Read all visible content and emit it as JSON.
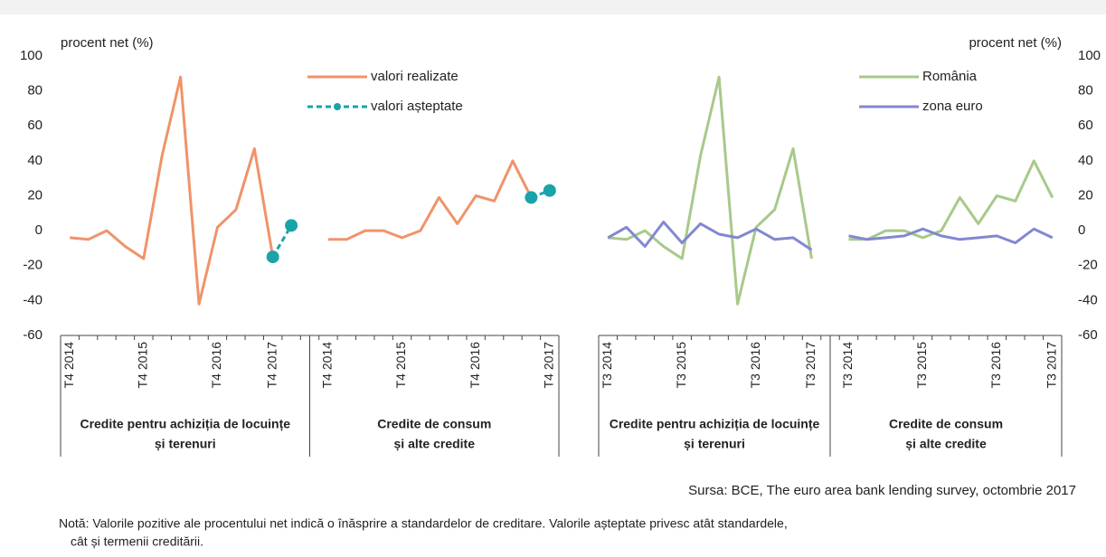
{
  "chart_data": [
    {
      "type": "line",
      "ylabel": "procent net (%)",
      "yaxis_position": "left",
      "ylim": [
        -60,
        100
      ],
      "yticks": [
        100,
        80,
        60,
        40,
        20,
        0,
        -20,
        -40,
        -60
      ],
      "categories": [
        "T4 2014",
        null,
        null,
        null,
        "T4 2015",
        null,
        null,
        null,
        "T4 2016",
        null,
        null,
        "T4 2017",
        null,
        null,
        "T4 2014",
        null,
        null,
        null,
        "T4 2015",
        null,
        null,
        null,
        "T4 2016",
        null,
        null,
        null,
        "T4 2017"
      ],
      "group_labels": [
        [
          "Credite pentru achiziția de locuințe",
          "și terenuri"
        ],
        [
          "Credite de consum",
          "și alte credite"
        ]
      ],
      "series": [
        {
          "name": "valori realizate",
          "color": "#f0936a",
          "dash": false,
          "marker": false,
          "values": [
            -4,
            -5,
            0,
            -9,
            -16,
            43,
            88,
            -42,
            2,
            12,
            47,
            -15,
            null,
            null,
            -5,
            -5,
            0,
            0,
            -4,
            0,
            19,
            4,
            20,
            17,
            40,
            19,
            null
          ]
        },
        {
          "name": "valori așteptate",
          "color": "#1aa3a8",
          "dash": true,
          "marker": true,
          "values": [
            null,
            null,
            null,
            null,
            null,
            null,
            null,
            null,
            null,
            null,
            null,
            -15,
            3,
            null,
            null,
            null,
            null,
            null,
            null,
            null,
            null,
            null,
            null,
            null,
            null,
            19,
            23
          ]
        }
      ]
    },
    {
      "type": "line",
      "ylabel": "procent net (%)",
      "yaxis_position": "right",
      "ylim": [
        -60,
        100
      ],
      "yticks": [
        100,
        80,
        60,
        40,
        20,
        0,
        -20,
        -40,
        -60
      ],
      "categories": [
        "T3 2014",
        null,
        null,
        null,
        "T3 2015",
        null,
        null,
        null,
        "T3 2016",
        null,
        null,
        "T3 2017",
        null,
        "T3 2014",
        null,
        null,
        null,
        "T3 2015",
        null,
        null,
        null,
        "T3 2016",
        null,
        null,
        "T3 2017"
      ],
      "group_labels": [
        [
          "Credite pentru achiziția de locuințe",
          "și terenuri"
        ],
        [
          "Credite de consum",
          "și alte credite"
        ]
      ],
      "series": [
        {
          "name": "România",
          "color": "#a8c98a",
          "dash": false,
          "marker": false,
          "values": [
            -4,
            -5,
            0,
            -9,
            -16,
            43,
            88,
            -42,
            2,
            12,
            47,
            -16,
            null,
            -5,
            -5,
            0,
            0,
            -4,
            0,
            19,
            4,
            20,
            17,
            40,
            19
          ]
        },
        {
          "name": "zona euro",
          "color": "#8288d0",
          "dash": false,
          "marker": false,
          "values": [
            -4,
            2,
            -9,
            5,
            -7,
            4,
            -2,
            -4,
            1,
            -5,
            -4,
            -11,
            null,
            -3,
            -5,
            -4,
            -3,
            1,
            -3,
            -5,
            -4,
            -3,
            -7,
            1,
            -4
          ]
        }
      ]
    }
  ],
  "source": "Sursa: BCE, The euro area bank lending survey, octombrie 2017",
  "note": [
    "Notă: Valorile pozitive ale procentului net indică o înăsprire a standardelor de creditare. Valorile așteptate privesc atât standardele,",
    "cât și termenii creditării."
  ]
}
